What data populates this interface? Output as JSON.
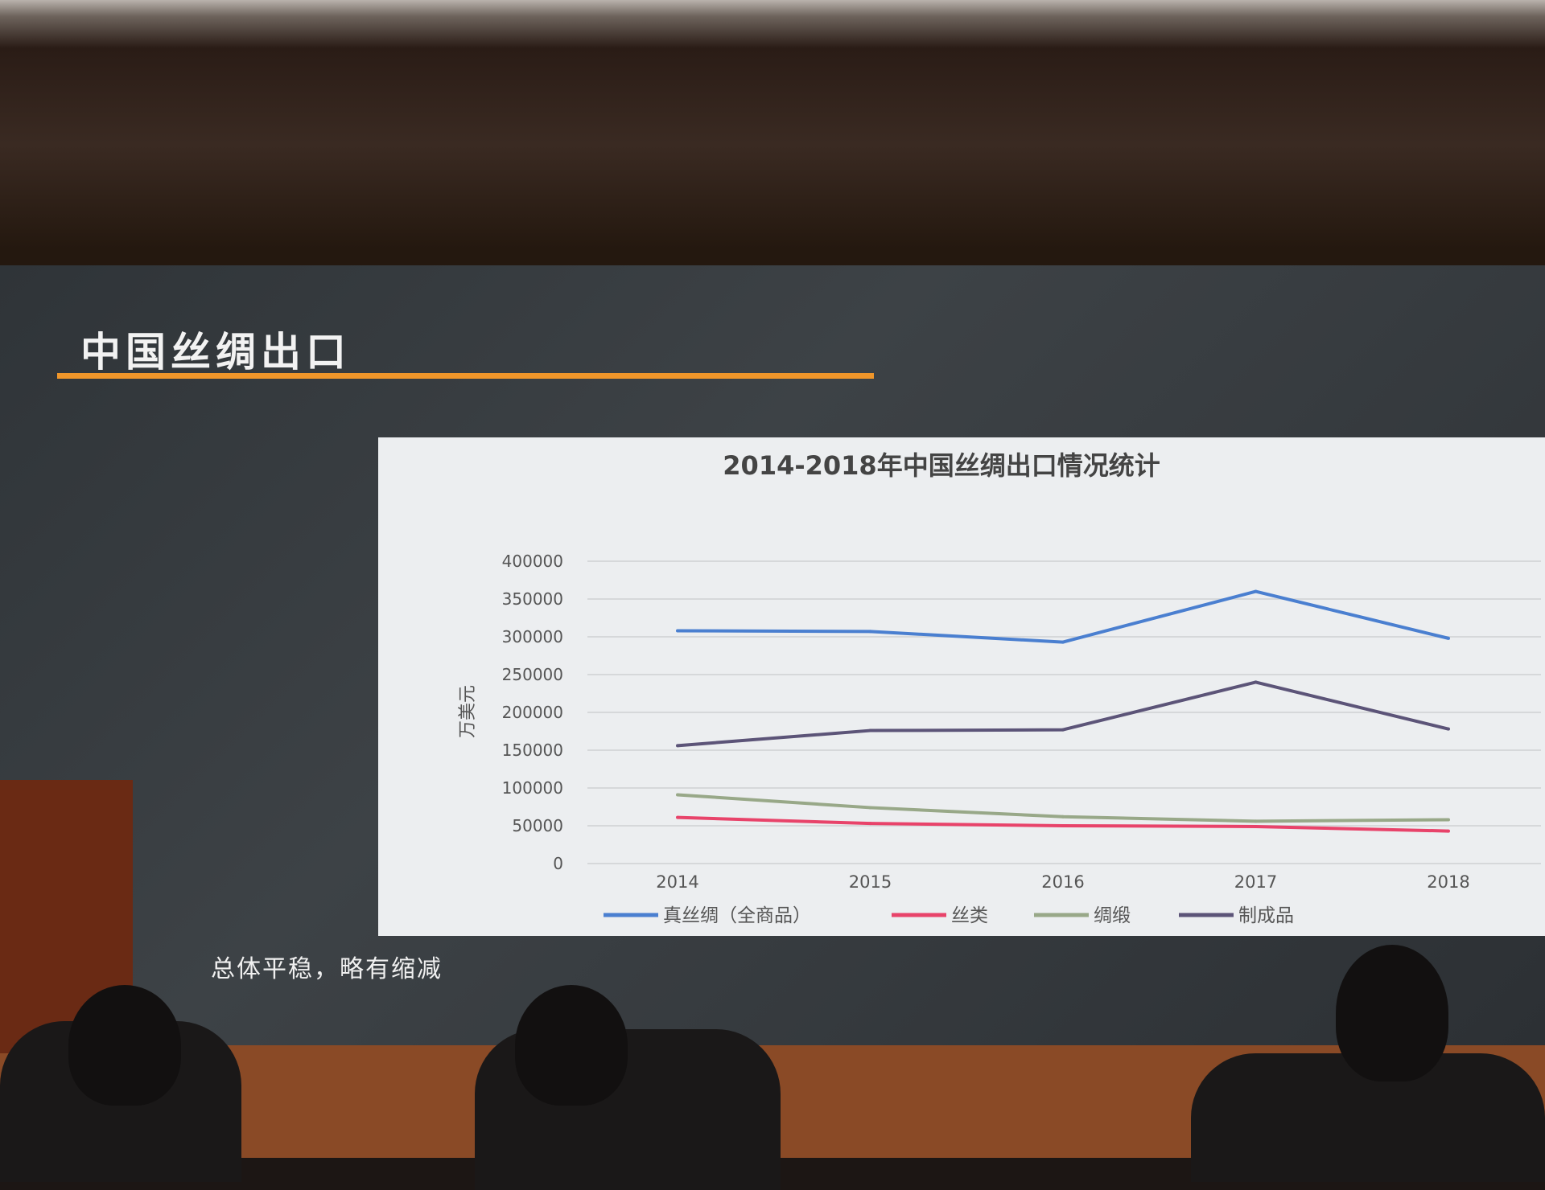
{
  "slide": {
    "title": "中国丝绸出口",
    "caption": "总体平稳，略有缩减",
    "accent_color": "#f0962a"
  },
  "chart_data": {
    "type": "line",
    "title": "2014-2018年中国丝绸出口情况统计",
    "ylabel": "万美元",
    "xlabel": "",
    "categories": [
      "2014",
      "2015",
      "2016",
      "2017",
      "2018"
    ],
    "ylim": [
      0,
      400000
    ],
    "yticks": [
      "0",
      "50000",
      "100000",
      "150000",
      "200000",
      "250000",
      "300000",
      "350000",
      "400000"
    ],
    "grid": true,
    "legend_placement": "bottom",
    "series": [
      {
        "name": "真丝绸（全商品）",
        "color": "#4a7fd0",
        "values": [
          308000,
          307000,
          293000,
          360000,
          298000
        ]
      },
      {
        "name": "丝类",
        "color": "#e8436a",
        "values": [
          61000,
          53000,
          50000,
          49000,
          43000
        ]
      },
      {
        "name": "绸缎",
        "color": "#98a888",
        "values": [
          91000,
          74000,
          62000,
          56000,
          58000
        ]
      },
      {
        "name": "制成品",
        "color": "#5c5478",
        "values": [
          156000,
          176000,
          177000,
          240000,
          178000
        ]
      }
    ]
  }
}
